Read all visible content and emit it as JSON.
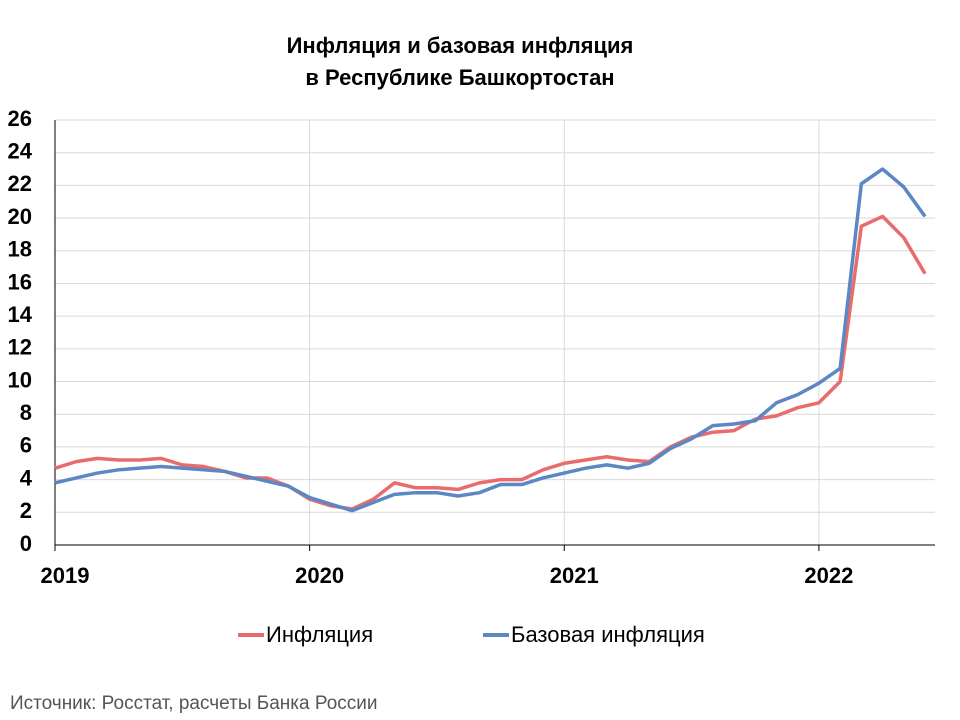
{
  "chart_data": {
    "type": "line",
    "title": [
      "Инфляция и базовая инфляция",
      "в  Республике Башкортостан"
    ],
    "categories": [
      "2019",
      null,
      null,
      null,
      null,
      null,
      null,
      null,
      null,
      null,
      null,
      null,
      "2020",
      null,
      null,
      null,
      null,
      null,
      null,
      null,
      null,
      null,
      null,
      null,
      "2021",
      null,
      null,
      null,
      null,
      null,
      null,
      null,
      null,
      null,
      null,
      null,
      "2022",
      null,
      null,
      null,
      null,
      null
    ],
    "series": [
      {
        "name": "Инфляция",
        "color": "#ea6b6b",
        "values": [
          4.7,
          5.1,
          5.3,
          5.2,
          5.2,
          5.3,
          4.9,
          4.8,
          4.5,
          4.1,
          4.1,
          3.6,
          2.8,
          2.4,
          2.2,
          2.8,
          3.8,
          3.5,
          3.5,
          3.4,
          3.8,
          4.0,
          4.0,
          4.6,
          5.0,
          5.2,
          5.4,
          5.2,
          5.1,
          6.0,
          6.6,
          6.9,
          7.0,
          7.7,
          7.9,
          8.4,
          8.7,
          10.0,
          19.5,
          20.1,
          18.8,
          16.6
        ]
      },
      {
        "name": "Базовая инфляция",
        "color": "#5b87c5",
        "values": [
          3.8,
          4.1,
          4.4,
          4.6,
          4.7,
          4.8,
          4.7,
          4.6,
          4.5,
          4.2,
          3.9,
          3.6,
          2.9,
          2.5,
          2.1,
          2.6,
          3.1,
          3.2,
          3.2,
          3.0,
          3.2,
          3.7,
          3.7,
          4.1,
          4.4,
          4.7,
          4.9,
          4.7,
          5.0,
          5.9,
          6.5,
          7.3,
          7.4,
          7.6,
          8.7,
          9.2,
          9.9,
          10.8,
          22.1,
          23.0,
          21.9,
          20.1
        ]
      }
    ],
    "ylim": [
      0,
      26
    ],
    "yticks": [
      0,
      2,
      4,
      6,
      8,
      10,
      12,
      14,
      16,
      18,
      20,
      22,
      24,
      26
    ],
    "grid": true,
    "legend": "bottom",
    "source": "Источник: Росстат, расчеты Банка России"
  }
}
